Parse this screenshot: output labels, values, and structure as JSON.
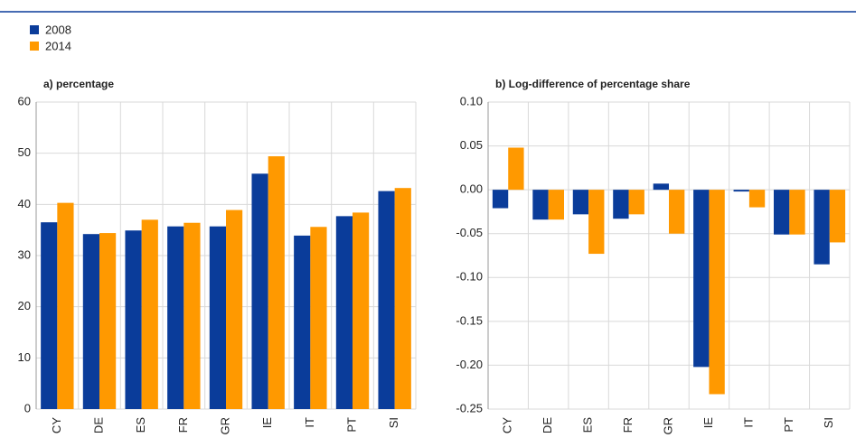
{
  "chart_data": [
    {
      "type": "bar",
      "title": "a) percentage",
      "categories": [
        "CY",
        "DE",
        "ES",
        "FR",
        "GR",
        "IE",
        "IT",
        "PT",
        "SI"
      ],
      "series": [
        {
          "name": "2008",
          "color": "#0a3c9a",
          "values": [
            36.5,
            34.2,
            34.9,
            35.7,
            35.7,
            46.0,
            33.9,
            37.7,
            42.6
          ]
        },
        {
          "name": "2014",
          "color": "#ff9900",
          "values": [
            40.3,
            34.4,
            37.0,
            36.4,
            38.9,
            49.4,
            35.6,
            38.4,
            43.2
          ]
        }
      ],
      "ylim": [
        0,
        60
      ],
      "yticks": [
        0,
        10,
        20,
        30,
        40,
        50,
        60
      ],
      "grid": true
    },
    {
      "type": "bar",
      "title": "b) Log-difference of percentage share",
      "categories": [
        "CY",
        "DE",
        "ES",
        "FR",
        "GR",
        "IE",
        "IT",
        "PT",
        "SI"
      ],
      "series": [
        {
          "color": "#0a3c9a",
          "values": [
            -0.021,
            -0.034,
            -0.028,
            -0.033,
            0.007,
            -0.202,
            -0.002,
            -0.051,
            -0.085
          ]
        },
        {
          "color": "#ff9900",
          "values": [
            0.048,
            -0.034,
            -0.073,
            -0.028,
            -0.05,
            -0.233,
            -0.02,
            -0.051,
            -0.06
          ]
        }
      ],
      "ylim": [
        -0.25,
        0.1
      ],
      "yticks": [
        {
          "value": 0.1,
          "label": "0.10"
        },
        0.05,
        {
          "value": 0,
          "label": "0.00"
        },
        -0.05,
        {
          "value": -0.1,
          "label": "-0.10"
        },
        -0.15,
        {
          "value": -0.2,
          "label": "-0.20"
        },
        -0.25
      ],
      "grid": true
    }
  ]
}
